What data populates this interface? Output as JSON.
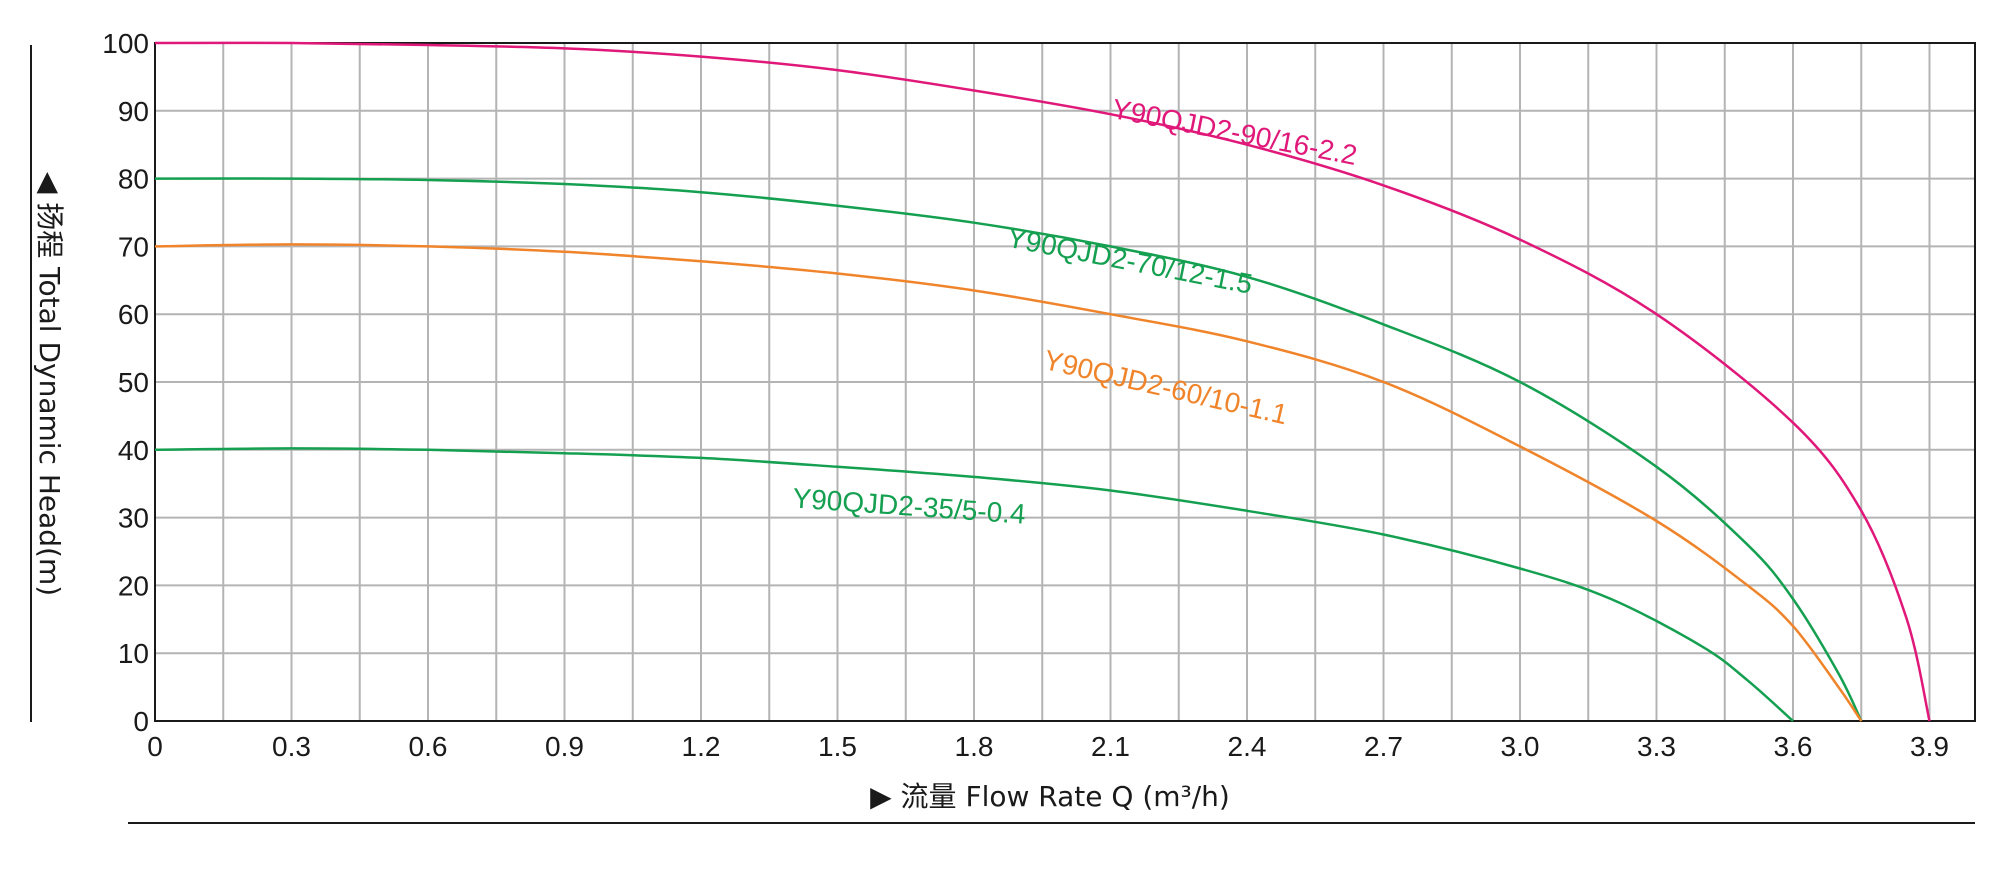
{
  "chart_data": {
    "type": "line",
    "xlabel": "▶ 流量 Flow Rate Q (m³/h)",
    "ylabel": "◀ 扬程 Total Dynamic Head(m)",
    "xlim": [
      0,
      4.0
    ],
    "ylim": [
      0,
      100
    ],
    "x_ticks": [
      0,
      0.3,
      0.6,
      0.9,
      1.2,
      1.5,
      1.8,
      2.1,
      2.4,
      2.7,
      3.0,
      3.3,
      3.6,
      3.9
    ],
    "x_tick_labels": [
      "0",
      "0.3",
      "0.6",
      "0.9",
      "1.2",
      "1.5",
      "1.8",
      "2.1",
      "2.4",
      "2.7",
      "3.0",
      "3.3",
      "3.6",
      "3.9"
    ],
    "y_ticks": [
      0,
      10,
      20,
      30,
      40,
      50,
      60,
      70,
      80,
      90,
      100
    ],
    "y_tick_labels": [
      "0",
      "10",
      "20",
      "30",
      "40",
      "50",
      "60",
      "70",
      "80",
      "90",
      "100"
    ],
    "grid": true,
    "x_grid_step": 0.15,
    "series": [
      {
        "name": "Y90QJD2-90/16-2.2",
        "color": "#e0187a",
        "points": [
          [
            0,
            100
          ],
          [
            0.3,
            100
          ],
          [
            0.6,
            99.7
          ],
          [
            0.9,
            99.2
          ],
          [
            1.2,
            98
          ],
          [
            1.5,
            96
          ],
          [
            1.8,
            93
          ],
          [
            2.1,
            89.5
          ],
          [
            2.4,
            85
          ],
          [
            2.7,
            79
          ],
          [
            3.0,
            71
          ],
          [
            3.3,
            60
          ],
          [
            3.6,
            44
          ],
          [
            3.75,
            31
          ],
          [
            3.85,
            15
          ],
          [
            3.9,
            0
          ]
        ]
      },
      {
        "name": "Y90QJD2-70/12-1.5",
        "color": "#14a050",
        "points": [
          [
            0,
            80
          ],
          [
            0.3,
            80
          ],
          [
            0.6,
            79.8
          ],
          [
            0.9,
            79.2
          ],
          [
            1.2,
            78
          ],
          [
            1.5,
            76
          ],
          [
            1.8,
            73.5
          ],
          [
            2.1,
            70
          ],
          [
            2.4,
            65.5
          ],
          [
            2.7,
            58.5
          ],
          [
            3.0,
            50
          ],
          [
            3.3,
            37.5
          ],
          [
            3.5,
            26
          ],
          [
            3.6,
            18
          ],
          [
            3.7,
            7
          ],
          [
            3.75,
            0
          ]
        ]
      },
      {
        "name": "Y90QJD2-60/10-1.1",
        "color": "#f0842a",
        "points": [
          [
            0,
            70
          ],
          [
            0.3,
            70.3
          ],
          [
            0.6,
            70
          ],
          [
            0.9,
            69.2
          ],
          [
            1.2,
            67.8
          ],
          [
            1.5,
            66
          ],
          [
            1.8,
            63.5
          ],
          [
            2.1,
            60
          ],
          [
            2.4,
            56
          ],
          [
            2.7,
            50
          ],
          [
            3.0,
            40.5
          ],
          [
            3.3,
            29.5
          ],
          [
            3.5,
            20
          ],
          [
            3.6,
            14
          ],
          [
            3.7,
            5
          ],
          [
            3.75,
            0
          ]
        ]
      },
      {
        "name": "Y90QJD2-35/5-0.4",
        "color": "#14a050",
        "points": [
          [
            0,
            40
          ],
          [
            0.3,
            40.2
          ],
          [
            0.6,
            40
          ],
          [
            0.9,
            39.5
          ],
          [
            1.2,
            38.8
          ],
          [
            1.5,
            37.5
          ],
          [
            1.8,
            36
          ],
          [
            2.1,
            34
          ],
          [
            2.4,
            31
          ],
          [
            2.7,
            27.5
          ],
          [
            3.0,
            22.5
          ],
          [
            3.2,
            18
          ],
          [
            3.4,
            11
          ],
          [
            3.5,
            6
          ],
          [
            3.6,
            0
          ]
        ]
      }
    ],
    "annotations": [
      {
        "text": "Y90QJD2-90/16-2.2",
        "color": "#e0187a",
        "x": 2.1,
        "y": 89,
        "rotate": 11
      },
      {
        "text": "Y90QJD2-70/12-1.5",
        "color": "#14a050",
        "x": 1.87,
        "y": 70,
        "rotate": 11
      },
      {
        "text": "Y90QJD2-60/10-1.1",
        "color": "#f0842a",
        "x": 1.95,
        "y": 52,
        "rotate": 13
      },
      {
        "text": "Y90QJD2-35/5-0.4",
        "color": "#14a050",
        "x": 1.4,
        "y": 31.5,
        "rotate": 4
      }
    ]
  }
}
